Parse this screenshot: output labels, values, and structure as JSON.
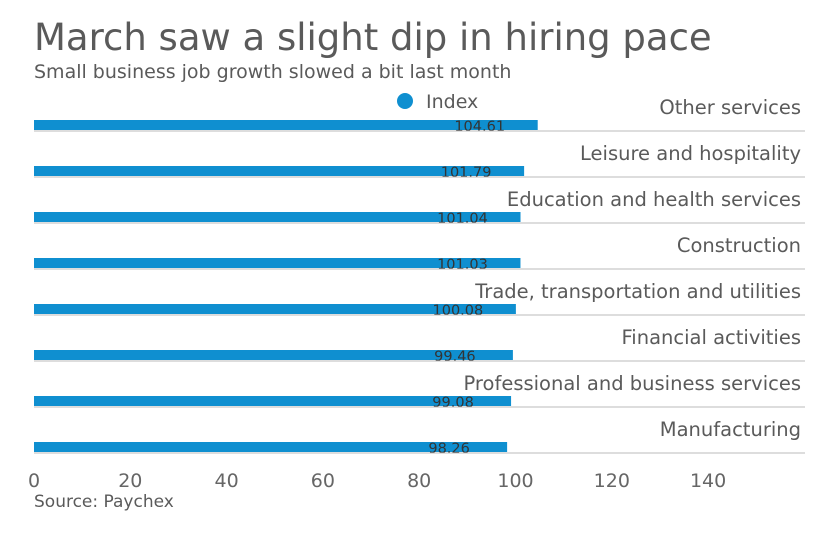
{
  "title": "March saw a slight dip in hiring pace",
  "subtitle": "Small business job growth slowed a bit last month",
  "source": "Source: Paychex",
  "chart_data": {
    "type": "bar",
    "orientation": "horizontal",
    "categories": [
      "Other services",
      "Leisure and hospitality",
      "Education and health services",
      "Construction",
      "Trade, transportation and utilities",
      "Financial activities",
      "Professional and business services",
      "Manufacturing"
    ],
    "series": [
      {
        "name": "Index",
        "color": "#0f8fd0",
        "values": [
          104.61,
          101.79,
          101.04,
          101.03,
          100.08,
          99.46,
          99.08,
          98.26
        ],
        "value_labels": [
          "104.61",
          "101.79",
          "101.04",
          "101.03",
          "100.08",
          "99.46",
          "99.08",
          "98.26"
        ]
      }
    ],
    "xlim": [
      0,
      160
    ],
    "xticks": [
      0,
      20,
      40,
      60,
      80,
      100,
      120,
      140
    ],
    "grid": "horizontal separators",
    "legend_position": "top-center"
  }
}
